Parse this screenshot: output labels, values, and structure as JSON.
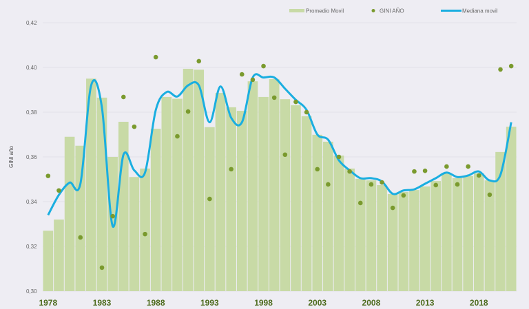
{
  "chart_data": {
    "type": "bar",
    "title": "",
    "xlabel": "",
    "ylabel": "GINI año",
    "ylim": [
      0.3,
      0.42
    ],
    "yticks": [
      "0,30",
      "0,32",
      "0,34",
      "0,36",
      "0,38",
      "0,40",
      "0,42"
    ],
    "xticks": [
      "1978",
      "1983",
      "1988",
      "1993",
      "1998",
      "2003",
      "2008",
      "2013",
      "2018"
    ],
    "grid": true,
    "legend_position": "top-right",
    "x": [
      1978,
      1979,
      1980,
      1981,
      1982,
      1983,
      1984,
      1985,
      1986,
      1987,
      1988,
      1989,
      1990,
      1991,
      1992,
      1993,
      1994,
      1995,
      1996,
      1997,
      1998,
      1999,
      2000,
      2001,
      2002,
      2003,
      2004,
      2005,
      2006,
      2007,
      2008,
      2009,
      2010,
      2011,
      2012,
      2013,
      2014,
      2015,
      2016,
      2017,
      2018,
      2019,
      2020,
      2021
    ],
    "series": [
      {
        "name": "Promedio Movil",
        "type": "bar",
        "color": "#c8daa6",
        "values": [
          0.327,
          0.332,
          0.369,
          0.365,
          0.395,
          0.3865,
          0.36,
          0.3757,
          0.351,
          0.3548,
          0.3726,
          0.3868,
          0.386,
          0.3994,
          0.399,
          0.3733,
          0.3886,
          0.3822,
          0.3806,
          0.3938,
          0.3868,
          0.3948,
          0.3858,
          0.3831,
          0.3782,
          0.3699,
          0.3668,
          0.3606,
          0.3548,
          0.3502,
          0.3495,
          0.3474,
          0.3434,
          0.3443,
          0.3452,
          0.3468,
          0.3492,
          0.3526,
          0.3505,
          0.3514,
          0.3526,
          0.3495,
          0.3622,
          0.3735
        ]
      },
      {
        "name": "GINI AÑO",
        "type": "scatter",
        "color": "#7a9a2e",
        "values": [
          0.3515,
          0.345,
          null,
          0.324,
          null,
          0.3105,
          0.3335,
          0.3868,
          0.3735,
          0.3255,
          0.4046,
          null,
          0.3692,
          0.3803,
          0.4028,
          0.3412,
          null,
          0.3545,
          0.3969,
          0.3945,
          0.4006,
          0.3865,
          0.361,
          0.3846,
          0.38,
          0.3545,
          0.3477,
          0.36,
          0.3535,
          0.3394,
          0.3477,
          0.3486,
          0.3372,
          0.3428,
          0.3535,
          0.3538,
          0.3474,
          0.3557,
          0.3477,
          0.3557,
          0.3517,
          0.3431,
          0.3991,
          0.4006
        ]
      },
      {
        "name": "Mediana movil",
        "type": "line",
        "color": "#1aaee0",
        "values": [
          0.334,
          0.343,
          0.3485,
          0.348,
          0.392,
          0.382,
          0.329,
          0.361,
          0.354,
          0.353,
          0.381,
          0.389,
          0.387,
          0.392,
          0.392,
          0.3755,
          0.3915,
          0.3775,
          0.3755,
          0.3955,
          0.3955,
          0.3955,
          0.3905,
          0.3855,
          0.381,
          0.37,
          0.3677,
          0.3585,
          0.354,
          0.3505,
          0.3505,
          0.349,
          0.3435,
          0.345,
          0.3455,
          0.348,
          0.3505,
          0.353,
          0.351,
          0.3517,
          0.3535,
          0.3495,
          0.352,
          0.3755
        ]
      }
    ]
  },
  "colors": {
    "background": "#eeedf3",
    "grid": "#e2e1e8"
  }
}
